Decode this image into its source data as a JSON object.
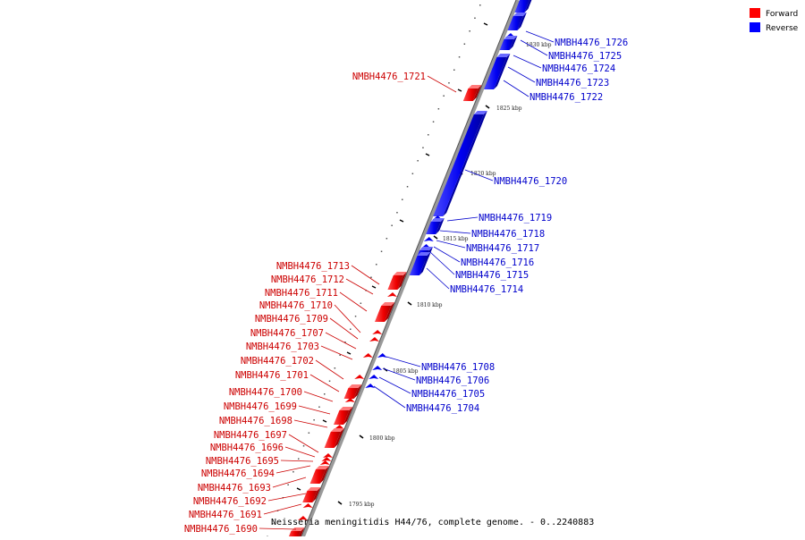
{
  "legend": [
    {
      "label": "Forward",
      "color": "#ff0000"
    },
    {
      "label": "Reverse",
      "color": "#0000ff"
    }
  ],
  "caption": "Neisseria meningitidis H44/76, complete genome. - 0..2240883",
  "colors": {
    "forward": "#ff0000",
    "reverse": "#0000ff",
    "forward_label": "#cc0000",
    "reverse_label": "#0000cc",
    "backbone": "#808080"
  },
  "ticks": [
    "1830 kbp",
    "1825 kbp",
    "1820 kbp",
    "1815 kbp",
    "1810 kbp",
    "1805 kbp",
    "1800 kbp",
    "1795 kbp"
  ],
  "forward_genes": [
    "NMBH4476_1721",
    "NMBH4476_1713",
    "NMBH4476_1712",
    "NMBH4476_1711",
    "NMBH4476_1710",
    "NMBH4476_1709",
    "NMBH4476_1707",
    "NMBH4476_1703",
    "NMBH4476_1702",
    "NMBH4476_1701",
    "NMBH4476_1700",
    "NMBH4476_1699",
    "NMBH4476_1698",
    "NMBH4476_1697",
    "NMBH4476_1696",
    "NMBH4476_1695",
    "NMBH4476_1694",
    "NMBH4476_1693",
    "NMBH4476_1692",
    "NMBH4476_1691",
    "NMBH4476_1690"
  ],
  "reverse_genes": [
    "NMBH4476_1726",
    "NMBH4476_1725",
    "NMBH4476_1724",
    "NMBH4476_1723",
    "NMBH4476_1722",
    "NMBH4476_1720",
    "NMBH4476_1719",
    "NMBH4476_1718",
    "NMBH4476_1717",
    "NMBH4476_1716",
    "NMBH4476_1715",
    "NMBH4476_1714",
    "NMBH4476_1708",
    "NMBH4476_1706",
    "NMBH4476_1705",
    "NMBH4476_1704"
  ]
}
